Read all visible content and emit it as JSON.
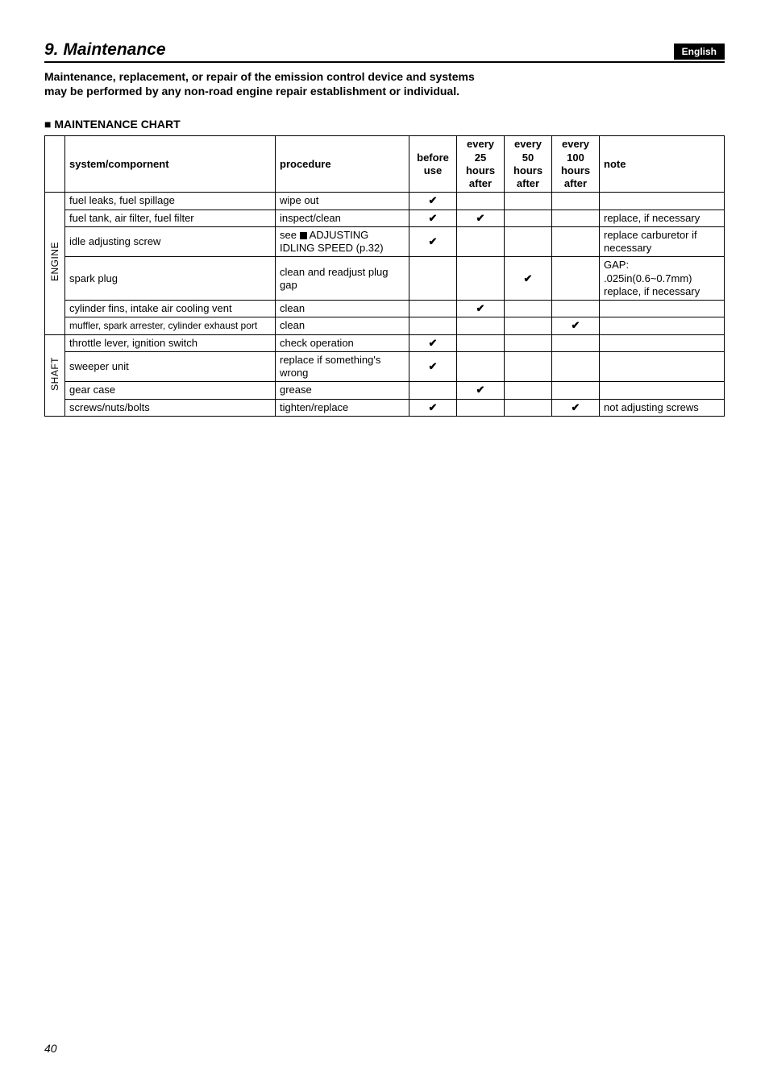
{
  "header": {
    "section_title": "9. Maintenance",
    "language_badge": "English"
  },
  "intro_text": "Maintenance, replacement, or repair of the emission control device and systems may be performed by any non-road engine repair establishment or individual.",
  "chart": {
    "heading": "MAINTENANCE CHART",
    "columns": {
      "system": "system/compornent",
      "procedure": "procedure",
      "before_use": "before use",
      "every_25": "every 25 hours after",
      "every_50": "every 50 hours after",
      "every_100": "every 100 hours after",
      "note": "note"
    },
    "groups": [
      {
        "label": "ENGINE",
        "rows": [
          {
            "system": "fuel leaks, fuel spillage",
            "procedure": "wipe out",
            "before": true,
            "e25": false,
            "e50": false,
            "e100": false,
            "note": ""
          },
          {
            "system": "fuel tank, air filter, fuel filter",
            "procedure": "inspect/clean",
            "before": true,
            "e25": true,
            "e50": false,
            "e100": false,
            "note": "replace, if necessary"
          },
          {
            "system": "idle adjusting screw",
            "procedure_prefix": "see ",
            "procedure_block": true,
            "procedure_text": "ADJUSTING IDLING SPEED (p.32)",
            "before": true,
            "e25": false,
            "e50": false,
            "e100": false,
            "note": "replace carburetor if necessary"
          },
          {
            "system": "spark plug",
            "procedure": "clean and readjust plug gap",
            "before": false,
            "e25": false,
            "e50": true,
            "e100": false,
            "note": "GAP: .025in(0.6~0.7mm) replace, if necessary"
          },
          {
            "system": "cylinder fins, intake air cooling vent",
            "procedure": "clean",
            "before": false,
            "e25": true,
            "e50": false,
            "e100": false,
            "note": ""
          },
          {
            "system": "muffler, spark arrester, cylinder exhaust port",
            "procedure": "clean",
            "before": false,
            "e25": false,
            "e50": false,
            "e100": true,
            "note": ""
          }
        ]
      },
      {
        "label": "SHAFT",
        "rows": [
          {
            "system": "throttle lever, ignition switch",
            "procedure": "check operation",
            "before": true,
            "e25": false,
            "e50": false,
            "e100": false,
            "note": ""
          },
          {
            "system": "sweeper unit",
            "procedure": "replace if something's wrong",
            "before": true,
            "e25": false,
            "e50": false,
            "e100": false,
            "note": ""
          },
          {
            "system": "gear case",
            "procedure": "grease",
            "before": false,
            "e25": true,
            "e50": false,
            "e100": false,
            "note": ""
          },
          {
            "system": "screws/nuts/bolts",
            "procedure": "tighten/replace",
            "before": true,
            "e25": false,
            "e50": false,
            "e100": true,
            "note": "not adjusting screws"
          }
        ]
      }
    ]
  },
  "checkmark": "✔",
  "page_number": "40"
}
